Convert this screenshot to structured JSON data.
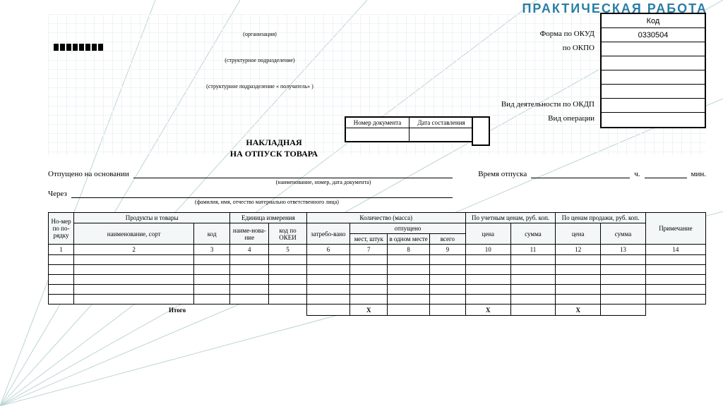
{
  "watermark": "ПРАКТИЧЕСКАЯ РАБОТА",
  "colors": {
    "watermark": "#2a7da6",
    "grid_line": "#eef3f4",
    "ray": "#bdd4d4",
    "border": "#000000",
    "header_bg": "#f3f7f8"
  },
  "codebox_header": "Код",
  "codebox": {
    "okud_label": "Форма по ОКУД",
    "okud_value": "0330504",
    "okpo_label": "по ОКПО",
    "okdp_label": "Вид деятельности по ОКДП",
    "op_label": "Вид операции"
  },
  "header_captions": {
    "org": "(организация)",
    "struct": "(структурное подразделение)",
    "struct_recv": "(структурное подразделение « получатель» )"
  },
  "docmeta": {
    "num_label": "Номер документа",
    "date_label": "Дата составления"
  },
  "title1": "НАКЛАДНАЯ",
  "title2": "НА ОТПУСК ТОВАРА",
  "released": {
    "label": "Отпущено на основании",
    "caption": "(наименование, номер, дата документа)",
    "time_label": "Время отпуска",
    "hours": "ч.",
    "mins": "мин."
  },
  "via": {
    "label": "Через",
    "caption": "(фамилия, имя, отчество материально ответственного лица)"
  },
  "table": {
    "h_num": "Но-мер по по-рядку",
    "h_goods": "Продукты и товары",
    "h_unit": "Единица измерения",
    "h_qty": "Количество (масса)",
    "h_acct": "По учетным ценам, руб. коп.",
    "h_sale": "По ценам продажи, руб. коп.",
    "h_note": "Примечание",
    "h_name": "наименование, сорт",
    "h_code": "код",
    "h_uname": "наиме-нова-ние",
    "h_okei": "код по ОКЕИ",
    "h_req": "затребо-вано",
    "h_rel": "отпущено",
    "h_places": "мест, штук",
    "h_inone": "в одном месте",
    "h_total": "всего",
    "h_price": "цена",
    "h_sum": "сумма",
    "nums": [
      "1",
      "2",
      "3",
      "4",
      "5",
      "6",
      "7",
      "8",
      "9",
      "10",
      "11",
      "12",
      "13",
      "14"
    ],
    "empty_rows": 5,
    "itogo": "Итого",
    "x": "Х"
  }
}
